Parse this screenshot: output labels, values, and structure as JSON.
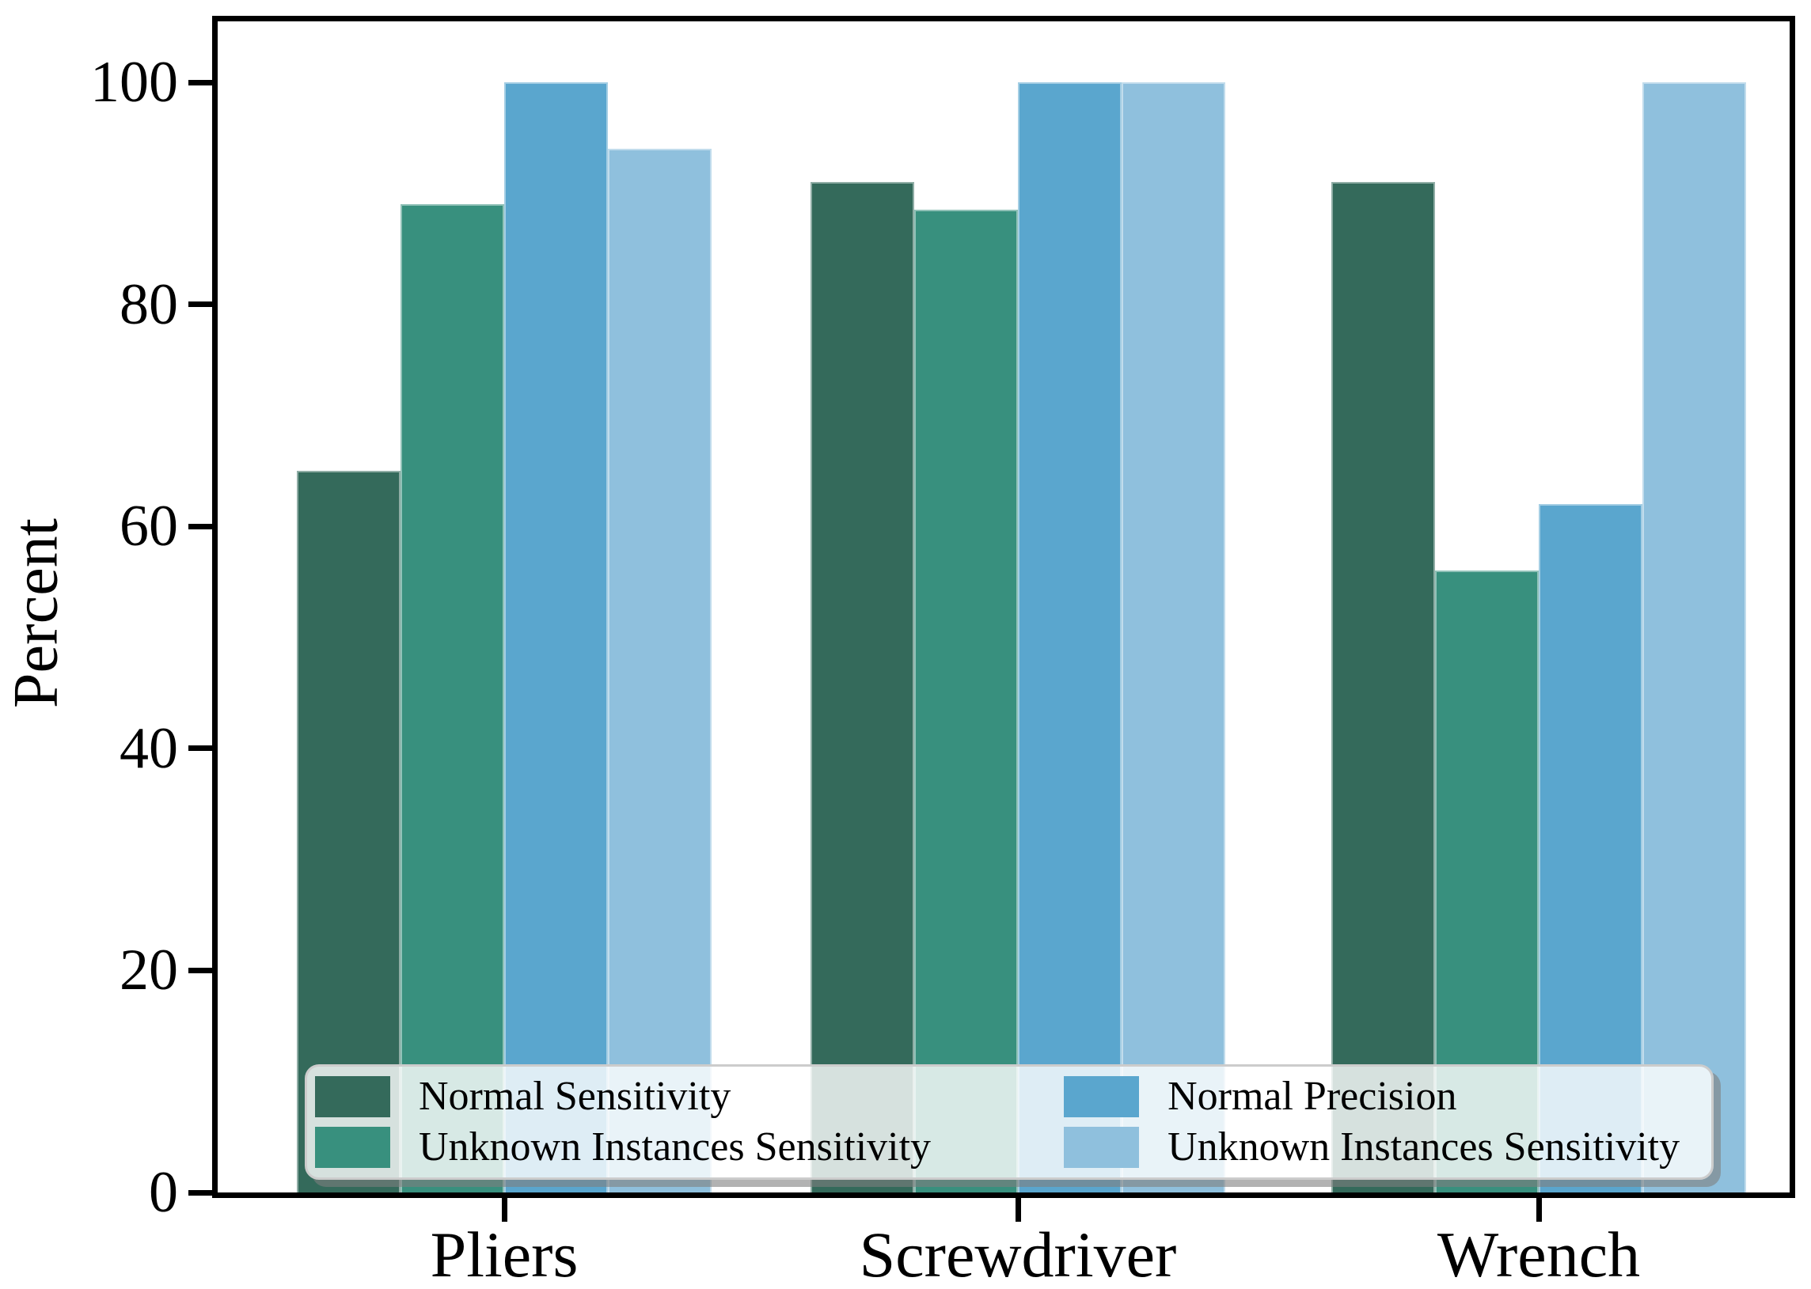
{
  "chart_data": {
    "type": "bar",
    "title": "",
    "xlabel": "",
    "ylabel": "Percent",
    "categories": [
      "Pliers",
      "Screwdriver",
      "Wrench"
    ],
    "series": [
      {
        "name": "Normal Sensitivity",
        "color": "#346a5b",
        "values": [
          65,
          91,
          91
        ]
      },
      {
        "name": "Unknown Instances Sensitivity",
        "color": "#38907e",
        "values": [
          89,
          88.5,
          56
        ]
      },
      {
        "name": "Normal Precision",
        "color": "#5aa6ce",
        "values": [
          100,
          100,
          62
        ]
      },
      {
        "name": "Unknown Instances Sensitivity",
        "color": "#8fc0dd",
        "values": [
          94,
          100,
          100
        ]
      }
    ],
    "yticks": [
      0,
      20,
      40,
      60,
      80,
      100
    ],
    "ylim": [
      0,
      105.5
    ],
    "grid": false,
    "legend": {
      "position": "lower left",
      "columns": 2,
      "order": "column-major"
    }
  }
}
